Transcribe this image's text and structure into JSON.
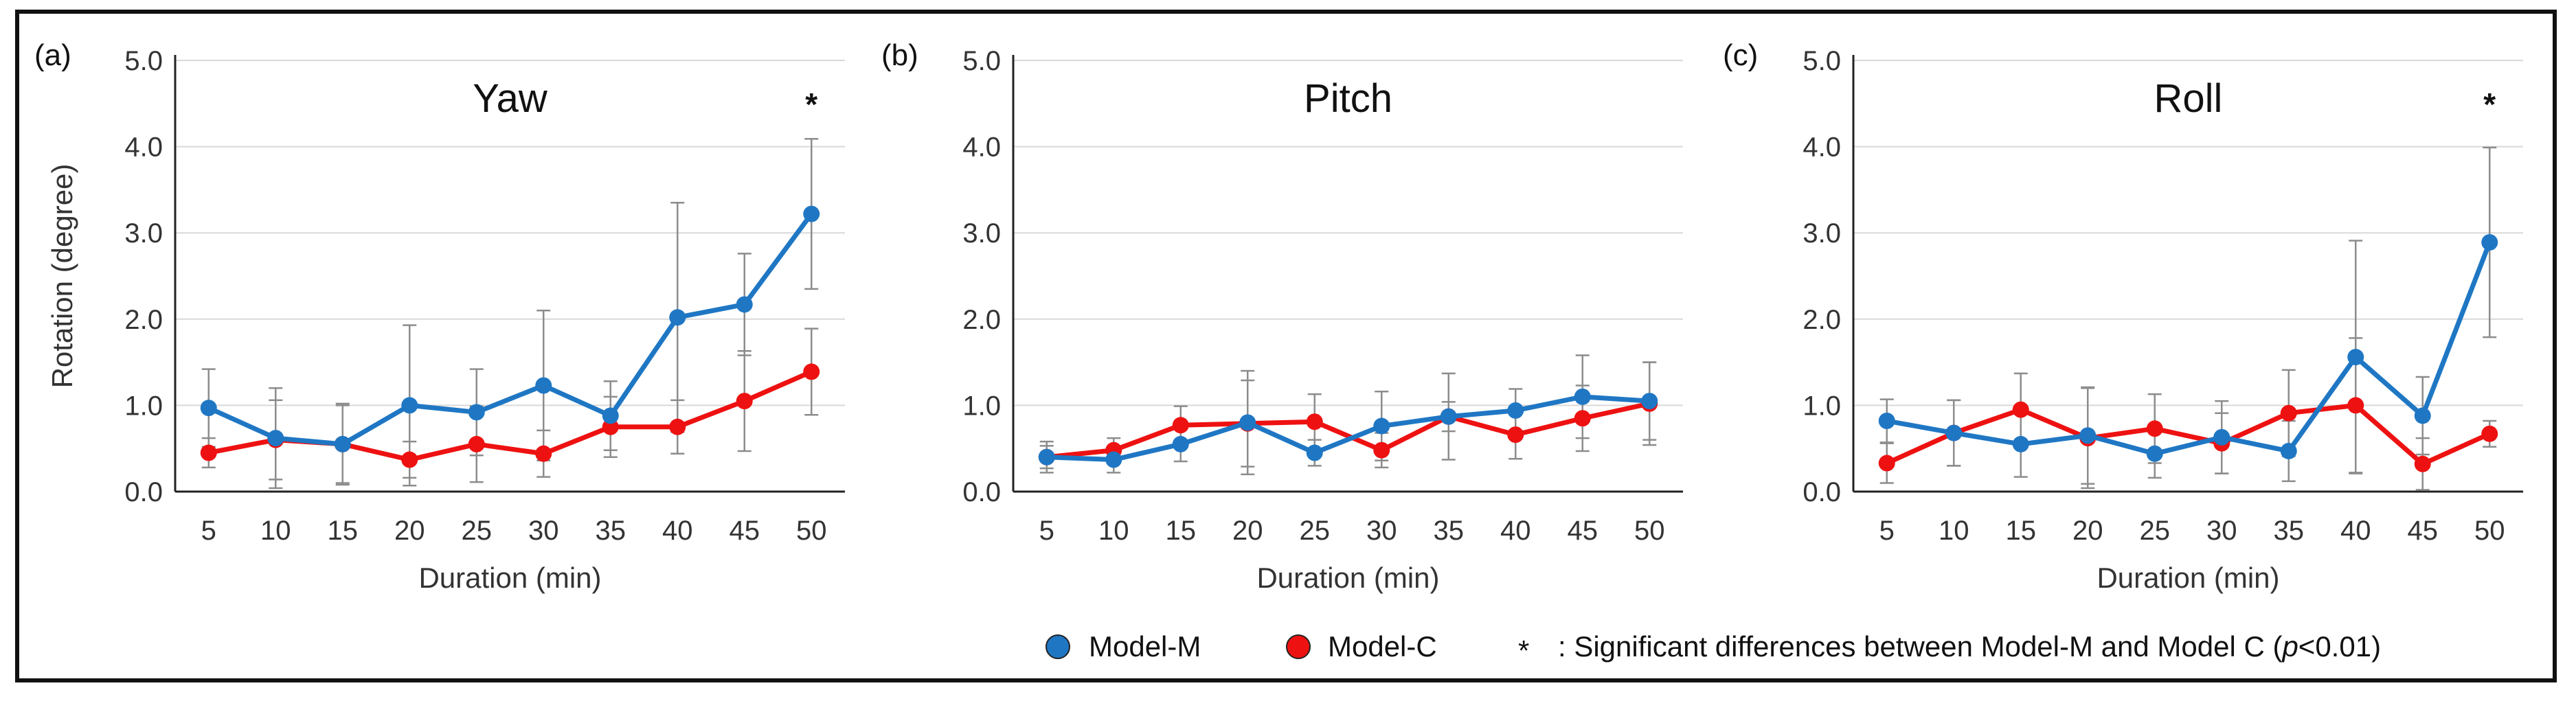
{
  "chart_data": [
    {
      "type": "line",
      "panel_label": "(a)",
      "title": "Yaw",
      "xlabel": "Duration (min)",
      "ylabel": "Rotation (degree)",
      "categories": [
        "5",
        "10",
        "15",
        "20",
        "25",
        "30",
        "35",
        "40",
        "45",
        "50"
      ],
      "ylim": [
        0,
        5
      ],
      "yticks": [
        "0.0",
        "1.0",
        "2.0",
        "3.0",
        "4.0",
        "5.0"
      ],
      "grid": true,
      "series": [
        {
          "name": "Model-M",
          "color": "#1f77c4",
          "values": [
            0.97,
            0.62,
            0.55,
            1.0,
            0.92,
            1.23,
            0.88,
            2.02,
            2.17,
            3.22
          ],
          "errors": [
            0.45,
            0.58,
            0.45,
            0.93,
            0.5,
            0.87,
            0.4,
            1.33,
            0.59,
            0.87
          ]
        },
        {
          "name": "Model-C",
          "color": "#ee1111",
          "values": [
            0.45,
            0.6,
            0.55,
            0.37,
            0.55,
            0.44,
            0.75,
            0.75,
            1.05,
            1.39
          ],
          "errors": [
            0.17,
            0.46,
            0.47,
            0.21,
            0.44,
            0.27,
            0.35,
            0.31,
            0.58,
            0.5
          ]
        }
      ],
      "significant": [
        "50"
      ],
      "significance_mark": "*"
    },
    {
      "type": "line",
      "panel_label": "(b)",
      "title": "Pitch",
      "xlabel": "Duration (min)",
      "ylabel": "",
      "categories": [
        "5",
        "10",
        "15",
        "20",
        "25",
        "30",
        "35",
        "40",
        "45",
        "50"
      ],
      "ylim": [
        0,
        5
      ],
      "yticks": [
        "0.0",
        "1.0",
        "2.0",
        "3.0",
        "4.0",
        "5.0"
      ],
      "grid": true,
      "series": [
        {
          "name": "Model-M",
          "color": "#1f77c4",
          "values": [
            0.4,
            0.37,
            0.55,
            0.8,
            0.45,
            0.76,
            0.87,
            0.94,
            1.1,
            1.05
          ],
          "errors": [
            0.13,
            0.15,
            0.2,
            0.6,
            0.15,
            0.4,
            0.5,
            0.25,
            0.48,
            0.45
          ]
        },
        {
          "name": "Model-C",
          "color": "#ee1111",
          "values": [
            0.4,
            0.48,
            0.77,
            0.79,
            0.81,
            0.48,
            0.87,
            0.66,
            0.85,
            1.02
          ],
          "errors": [
            0.18,
            0.14,
            0.22,
            0.5,
            0.32,
            0.2,
            0.17,
            0.28,
            0.38,
            0.48
          ]
        }
      ],
      "significant": [],
      "significance_mark": "*"
    },
    {
      "type": "line",
      "panel_label": "(c)",
      "title": "Roll",
      "xlabel": "Duration (min)",
      "ylabel": "",
      "categories": [
        "5",
        "10",
        "15",
        "20",
        "25",
        "30",
        "35",
        "40",
        "45",
        "50"
      ],
      "ylim": [
        0,
        5
      ],
      "yticks": [
        "0.0",
        "1.0",
        "2.0",
        "3.0",
        "4.0",
        "5.0"
      ],
      "grid": true,
      "series": [
        {
          "name": "Model-M",
          "color": "#1f77c4",
          "values": [
            0.82,
            0.68,
            0.55,
            0.65,
            0.44,
            0.63,
            0.47,
            1.56,
            0.88,
            2.89
          ],
          "errors": [
            0.25,
            0.38,
            0.38,
            0.56,
            0.28,
            0.42,
            0.35,
            1.35,
            0.45,
            1.1
          ]
        },
        {
          "name": "Model-C",
          "color": "#ee1111",
          "values": [
            0.33,
            0.68,
            0.95,
            0.62,
            0.73,
            0.56,
            0.91,
            1.0,
            0.32,
            0.67
          ],
          "errors": [
            0.23,
            0.38,
            0.42,
            0.58,
            0.4,
            0.35,
            0.5,
            0.78,
            0.3,
            0.15
          ]
        }
      ],
      "significant": [
        "50"
      ],
      "significance_mark": "*"
    }
  ],
  "legend": {
    "model_m": "Model-M",
    "model_c": "Model-C",
    "note_mark": "*",
    "note_prefix": ": Significant differences between Model-M and Model C (",
    "note_p": "p",
    "note_suffix": "<0.01)",
    "color_m": "#1f77c4",
    "color_c": "#ee1111"
  }
}
